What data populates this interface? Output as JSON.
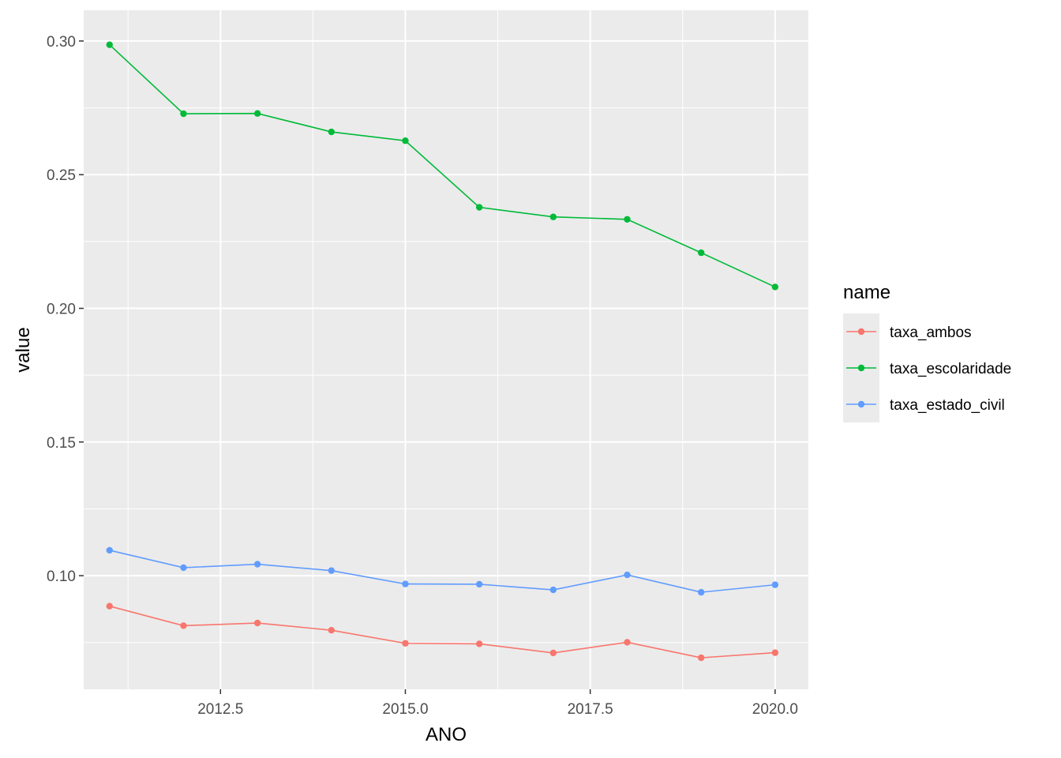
{
  "chart_data": {
    "type": "line",
    "xlabel": "ANO",
    "ylabel": "value",
    "x": [
      2011,
      2012,
      2013,
      2014,
      2015,
      2016,
      2017,
      2018,
      2019,
      2020
    ],
    "xlim": [
      2010.65,
      2020.45
    ],
    "ylim": [
      0.0575,
      0.3115
    ],
    "xticks": [
      2012.5,
      2015.0,
      2017.5,
      2020.0
    ],
    "xtick_labels": [
      "2012.5",
      "2015.0",
      "2017.5",
      "2020.0"
    ],
    "yticks": [
      0.1,
      0.15,
      0.2,
      0.25,
      0.3
    ],
    "ytick_labels": [
      "0.10",
      "0.15",
      "0.20",
      "0.25",
      "0.30"
    ],
    "grid": true,
    "legend": {
      "title": "name",
      "placement": "right"
    },
    "series": [
      {
        "name": "taxa_ambos",
        "color": "#F8766D",
        "values": [
          0.0886,
          0.0813,
          0.0823,
          0.0796,
          0.0747,
          0.0745,
          0.0711,
          0.0751,
          0.0693,
          0.0712
        ]
      },
      {
        "name": "taxa_escolaridade",
        "color": "#00BA38",
        "values": [
          0.2986,
          0.2728,
          0.2729,
          0.266,
          0.2627,
          0.2378,
          0.2342,
          0.2333,
          0.2208,
          0.208
        ]
      },
      {
        "name": "taxa_estado_civil",
        "color": "#619CFF",
        "values": [
          0.1095,
          0.103,
          0.1043,
          0.1019,
          0.0969,
          0.0968,
          0.0947,
          0.1003,
          0.0938,
          0.0966
        ]
      }
    ]
  }
}
